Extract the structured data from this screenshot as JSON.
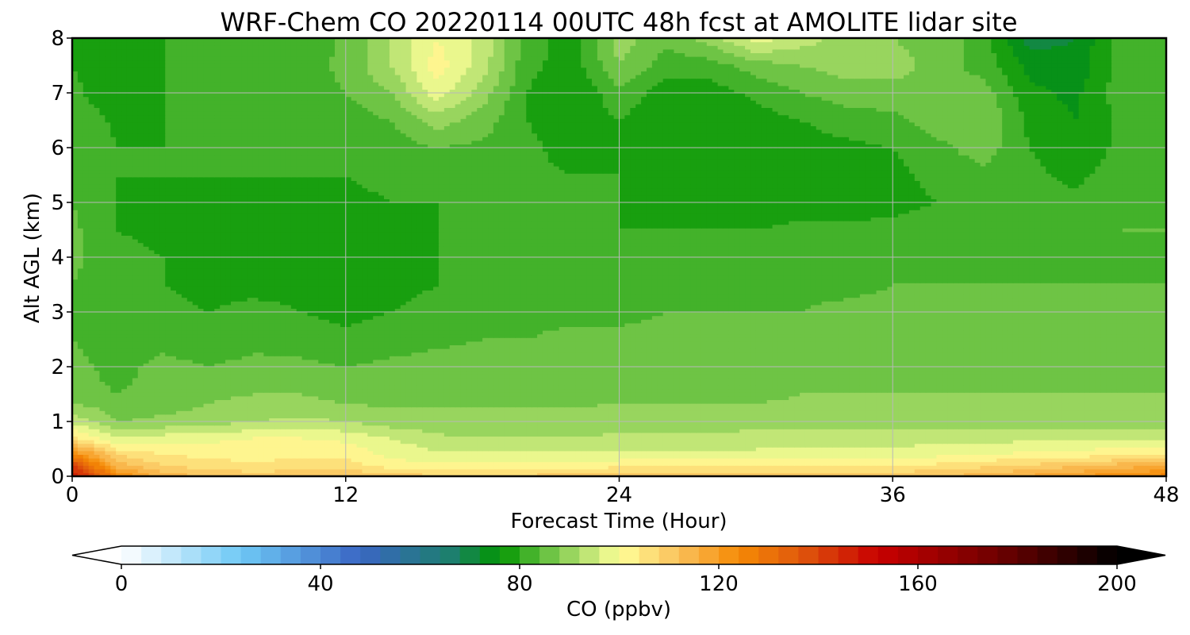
{
  "chart_data": {
    "type": "heatmap",
    "title": "WRF-Chem CO  20220114 00UTC 48h fcst at AMOLITE lidar site",
    "xlabel": "Forecast Time (Hour)",
    "ylabel": "Alt AGL (km)",
    "xlim": [
      0,
      48
    ],
    "ylim": [
      0,
      8
    ],
    "x_ticks": [
      "0",
      "12",
      "24",
      "36",
      "48"
    ],
    "y_ticks": [
      "0",
      "1",
      "2",
      "3",
      "4",
      "5",
      "6",
      "7",
      "8"
    ],
    "grid": true,
    "x_hours": [
      0,
      2,
      4,
      6,
      8,
      10,
      12,
      14,
      16,
      18,
      20,
      22,
      24,
      26,
      28,
      30,
      32,
      34,
      36,
      38,
      40,
      42,
      44,
      46,
      48
    ],
    "y_km": [
      0,
      0.2,
      0.4,
      0.7,
      1.0,
      1.5,
      2.0,
      2.5,
      3.0,
      3.5,
      4.0,
      4.5,
      5.0,
      5.5,
      6.0,
      6.5,
      7.0,
      7.5,
      8.0
    ],
    "co_ppbv": [
      [
        150,
        125,
        114,
        112,
        110,
        111,
        112,
        110,
        109,
        109,
        109,
        110,
        110,
        110,
        110,
        110,
        110,
        110,
        111,
        112,
        114,
        117,
        120,
        123,
        126
      ],
      [
        140,
        114,
        108,
        106,
        105,
        106,
        106,
        102,
        101,
        102,
        102,
        102,
        103,
        103,
        103,
        103,
        103,
        103,
        104,
        105,
        107,
        109,
        111,
        114,
        116
      ],
      [
        125,
        108,
        104,
        103,
        102,
        103,
        103,
        99,
        97,
        97,
        97,
        97,
        97,
        97,
        97,
        97,
        98,
        98,
        98,
        99,
        100,
        101,
        102,
        103,
        104
      ],
      [
        105,
        96,
        98,
        99,
        100,
        100,
        99,
        96,
        93,
        92,
        92,
        92,
        93,
        93,
        93,
        94,
        94,
        94,
        94,
        94,
        94,
        95,
        95,
        95,
        95
      ],
      [
        95,
        88,
        89,
        90,
        92,
        93,
        92,
        90,
        89,
        89,
        89,
        89,
        90,
        90,
        90,
        90,
        90,
        90,
        90,
        90,
        90,
        90,
        90,
        90,
        90
      ],
      [
        85,
        84,
        85,
        87,
        88,
        88,
        86,
        86,
        87,
        87,
        87,
        87,
        87,
        87,
        87,
        87,
        88,
        88,
        88,
        88,
        88,
        88,
        88,
        88,
        88
      ],
      [
        85,
        83,
        85,
        84,
        85,
        85,
        84,
        85,
        86,
        86,
        86,
        86,
        86,
        86,
        86,
        87,
        87,
        87,
        87,
        87,
        87,
        87,
        87,
        87,
        87
      ],
      [
        84,
        82,
        83,
        82,
        83,
        82,
        81,
        82,
        83,
        84,
        84,
        85,
        85,
        85,
        86,
        86,
        86,
        86,
        86,
        86,
        86,
        86,
        86,
        86,
        86
      ],
      [
        84,
        82,
        81,
        80,
        81,
        80,
        79,
        80,
        81,
        82,
        83,
        83,
        83,
        84,
        84,
        84,
        84,
        85,
        85,
        85,
        85,
        85,
        85,
        85,
        85
      ],
      [
        84,
        81,
        80,
        79,
        79,
        79,
        78,
        79,
        80,
        81,
        81,
        82,
        82,
        82,
        83,
        83,
        83,
        83,
        84,
        84,
        84,
        84,
        84,
        84,
        84
      ],
      [
        85,
        81,
        80,
        79,
        78,
        78,
        78,
        79,
        80,
        81,
        81,
        81,
        81,
        81,
        81,
        82,
        82,
        82,
        83,
        83,
        83,
        83,
        83,
        83,
        84
      ],
      [
        85,
        80,
        79,
        78,
        77,
        77,
        78,
        79,
        80,
        81,
        81,
        80,
        80,
        80,
        80,
        80,
        81,
        81,
        81,
        82,
        82,
        82,
        83,
        84,
        84
      ],
      [
        84,
        80,
        79,
        79,
        78,
        78,
        79,
        80,
        80,
        81,
        80,
        80,
        80,
        79,
        78,
        78,
        78,
        78,
        79,
        80,
        82,
        82,
        81,
        83,
        84
      ],
      [
        84,
        80,
        80,
        80,
        80,
        80,
        80,
        81,
        82,
        82,
        81,
        80,
        80,
        78,
        77,
        77,
        77,
        78,
        79,
        81,
        83,
        81,
        79,
        82,
        83
      ],
      [
        84,
        80,
        80,
        81,
        82,
        81,
        81,
        82,
        84,
        83,
        81,
        78,
        80,
        77,
        76,
        77,
        78,
        79,
        80,
        83,
        86,
        80,
        77,
        81,
        82
      ],
      [
        83,
        79,
        80,
        82,
        83,
        82,
        82,
        84,
        90,
        86,
        80,
        77,
        80,
        76,
        76,
        78,
        80,
        82,
        83,
        86,
        88,
        79,
        76,
        81,
        82
      ],
      [
        81,
        77,
        80,
        82,
        82,
        82,
        84,
        88,
        98,
        90,
        80,
        76,
        83,
        78,
        78,
        81,
        84,
        86,
        86,
        88,
        86,
        77,
        75,
        82,
        83
      ],
      [
        80,
        78,
        80,
        81,
        81,
        82,
        85,
        92,
        102,
        94,
        81,
        78,
        88,
        82,
        82,
        86,
        88,
        90,
        90,
        86,
        82,
        75,
        73,
        82,
        82
      ],
      [
        80,
        78,
        80,
        80,
        80,
        81,
        85,
        92,
        100,
        95,
        82,
        78,
        90,
        85,
        90,
        98,
        94,
        90,
        88,
        86,
        82,
        70,
        72,
        82,
        82
      ]
    ],
    "colorbar": {
      "label": "CO  (ppbv)",
      "ticks": [
        "0",
        "40",
        "80",
        "120",
        "160",
        "200"
      ],
      "min": 0,
      "max": 200,
      "extend": "both",
      "stops": [
        {
          "v": 0,
          "c": "#ffffff"
        },
        {
          "v": 24,
          "c": "#6ec8f5"
        },
        {
          "v": 48,
          "c": "#3a66c4"
        },
        {
          "v": 66,
          "c": "#1d7f6e"
        },
        {
          "v": 76,
          "c": "#029602"
        },
        {
          "v": 88,
          "c": "#83cd52"
        },
        {
          "v": 100,
          "c": "#ffff99"
        },
        {
          "v": 112,
          "c": "#fac05a"
        },
        {
          "v": 124,
          "c": "#f58a05"
        },
        {
          "v": 136,
          "c": "#e05a0c"
        },
        {
          "v": 152,
          "c": "#c80000"
        },
        {
          "v": 176,
          "c": "#6e0000"
        },
        {
          "v": 200,
          "c": "#000000"
        }
      ]
    }
  }
}
